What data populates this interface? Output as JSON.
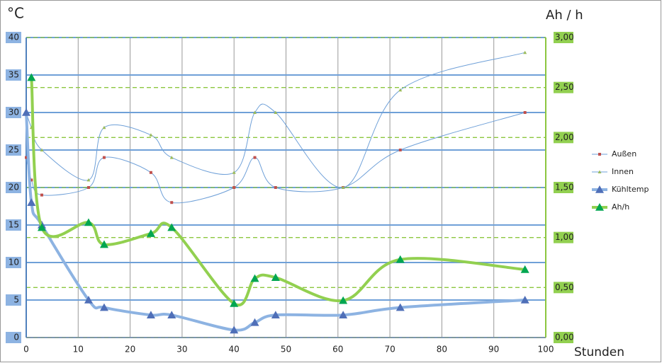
{
  "chart_data": {
    "type": "line",
    "y_label": "°C",
    "y2_label": "Ah / h",
    "x_label": "Stunden",
    "xlim": [
      0,
      100
    ],
    "xticks": [
      0,
      10,
      20,
      30,
      40,
      50,
      60,
      70,
      80,
      90,
      100
    ],
    "ylim": [
      0,
      40
    ],
    "yticks": [
      0,
      5,
      10,
      15,
      20,
      25,
      30,
      35,
      40
    ],
    "y2lim": [
      0,
      3
    ],
    "y2ticks": [
      {
        "value": 0,
        "label": "0,00"
      },
      {
        "value": 0.5,
        "label": "0,50"
      },
      {
        "value": 1,
        "label": "1,00"
      },
      {
        "value": 1.5,
        "label": "1,50"
      },
      {
        "value": 2,
        "label": "2,00"
      },
      {
        "value": 2.5,
        "label": "2,50"
      },
      {
        "value": 3,
        "label": "3,00"
      }
    ],
    "grid": true,
    "legend": "right",
    "smooth": true,
    "series": [
      {
        "name": "Außen",
        "color": "#6fa0d8",
        "marker_color": "#c0504d",
        "marker": "square",
        "marker_size": 4,
        "line_width": 1,
        "x": [
          0,
          1,
          3,
          12,
          15,
          24,
          28,
          40,
          44,
          48,
          61,
          72,
          96
        ],
        "values": [
          24,
          21,
          19,
          20,
          24,
          22,
          18,
          20,
          24,
          20,
          20,
          25,
          30
        ]
      },
      {
        "name": "Innen",
        "color": "#6fa0d8",
        "marker_color": "#9bbb59",
        "marker": "triangle",
        "marker_size": 5,
        "line_width": 1,
        "x": [
          0,
          1,
          3,
          12,
          15,
          24,
          28,
          40,
          44,
          48,
          61,
          72,
          96
        ],
        "values": [
          30,
          28,
          25,
          21,
          28,
          27,
          24,
          22,
          30,
          30,
          20,
          33,
          38
        ]
      },
      {
        "name": "Kühltemp",
        "color": "#8db3e2",
        "marker_color": "#4f6fb8",
        "marker": "triangle",
        "marker_size": 12,
        "line_width": 4,
        "x": [
          0,
          1,
          3,
          12,
          15,
          24,
          28,
          40,
          44,
          48,
          61,
          72,
          96
        ],
        "values": [
          30,
          18,
          15,
          5,
          4,
          3,
          3,
          1,
          2,
          3,
          3,
          4,
          5
        ]
      },
      {
        "name": "Ah/h",
        "color": "#92d050",
        "marker_color": "#00a651",
        "marker": "triangle",
        "marker_size": 12,
        "line_width": 4,
        "axis": "y2",
        "x": [
          1,
          3,
          12,
          15,
          24,
          28,
          40,
          44,
          48,
          61,
          72,
          96
        ],
        "values": [
          2.6,
          1.1,
          1.15,
          0.93,
          1.04,
          1.1,
          0.34,
          0.59,
          0.6,
          0.37,
          0.78,
          0.68
        ]
      }
    ]
  }
}
